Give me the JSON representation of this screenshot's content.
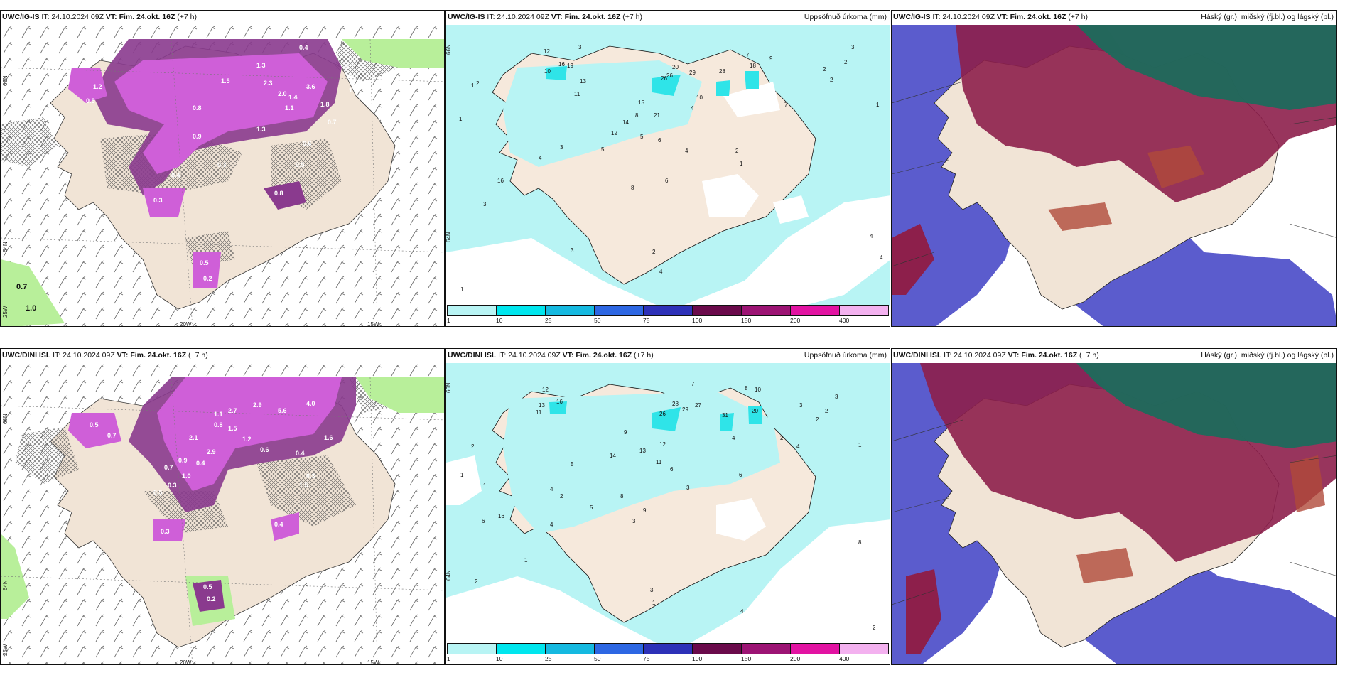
{
  "colors": {
    "land": "#f1e4d6",
    "precip_light": "#b8f4f4",
    "precip_cyan": "#2fe4e8",
    "purple_1": "#cf5fd8",
    "purple_2": "#8a3a8e",
    "green": "#b8ef9a",
    "cloud_low": "#5b5ccd",
    "cloud_mid": "#8d1f4b",
    "cloud_high": "#1e6a5c"
  },
  "panels": {
    "p1": {
      "model": "UWC/IG-IS",
      "it": "IT: 24.10.2024 09Z",
      "vt": "VT: Fim. 24.okt. 16Z",
      "lead": "(+7 h)",
      "axes": {
        "lon1": "20W",
        "lon2": "15W",
        "lat1": "66N",
        "lat2": "64N",
        "lat3": "25W"
      },
      "values": [
        "0.4",
        "0.7",
        "1.0",
        "1.3",
        "2.3",
        "1.5",
        "3.6",
        "1.8",
        "1.4",
        "1.1",
        "2.0",
        "0.7",
        "0.8",
        "1.2",
        "0.5",
        "0.9",
        "0.3",
        "0.4",
        "1.3",
        "0.6",
        "0.8",
        "0.5",
        "0.3",
        "0.5",
        "0.2",
        "0.7",
        "1.0"
      ]
    },
    "p2": {
      "model": "UWC/IG-IS",
      "it": "IT: 24.10.2024 09Z",
      "vt": "VT: Fim. 24.okt. 16Z",
      "lead": "(+7 h)",
      "title": "Uppsöfnuð úrkoma (mm)",
      "lat": [
        "66N",
        "64N"
      ],
      "numbers": [
        "3",
        "12",
        "16",
        "19",
        "10",
        "13",
        "11",
        "26",
        "20",
        "26",
        "29",
        "28",
        "18",
        "9",
        "7",
        "3",
        "15",
        "14",
        "21",
        "10",
        "4",
        "12",
        "6",
        "2",
        "7",
        "8",
        "5",
        "16",
        "1",
        "3",
        "4",
        "5",
        "8",
        "6",
        "4",
        "2",
        "1",
        "3",
        "2",
        "4",
        "1",
        "2",
        "4",
        "4",
        "2",
        "1",
        "3",
        "2",
        "1"
      ]
    },
    "p3": {
      "model": "UWC/IG-IS",
      "it": "IT: 24.10.2024 09Z",
      "vt": "VT: Fim. 24.okt. 16Z",
      "lead": "(+7 h)",
      "title": "Háský (gr.), miðský (fj.bl.) og lágský (bl.)"
    },
    "p4": {
      "model": "UWC/DINI ISL",
      "it": "IT: 24.10.2024 09Z",
      "vt": "VT: Fim. 24.okt. 16Z",
      "lead": "(+7 h)",
      "axes": {
        "lon1": "20W",
        "lon2": "15W",
        "lat1": "66N",
        "lat2": "64N",
        "lat3": "25W"
      },
      "values": [
        "2.9",
        "4.0",
        "5.6",
        "2.7",
        "1.6",
        "1.1",
        "0.8",
        "2.1",
        "1.5",
        "2.9",
        "1.2",
        "0.5",
        "0.4",
        "0.3",
        "1.5",
        "0.6",
        "0.4",
        "0.7",
        "0.9",
        "1.0",
        "0.5",
        "0.3",
        "0.4",
        "0.5",
        "0.2",
        "0.3",
        "0.7"
      ]
    },
    "p5": {
      "model": "UWC/DINI ISL",
      "it": "IT: 24.10.2024 09Z",
      "vt": "VT: Fim. 24.okt. 16Z",
      "lead": "(+7 h)",
      "title": "Uppsöfnuð úrkoma (mm)",
      "lat": [
        "66N",
        "64N"
      ],
      "numbers": [
        "7",
        "8",
        "10",
        "12",
        "16",
        "13",
        "11",
        "26",
        "28",
        "27",
        "29",
        "31",
        "20",
        "9",
        "3",
        "2",
        "14",
        "13",
        "12",
        "11",
        "5",
        "6",
        "8",
        "2",
        "4",
        "1",
        "3",
        "4",
        "6",
        "5",
        "16",
        "9",
        "3",
        "4",
        "2",
        "1",
        "3",
        "2",
        "4",
        "1",
        "6",
        "2",
        "8",
        "1",
        "3",
        "2",
        "4",
        "1",
        "2"
      ]
    },
    "p6": {
      "model": "UWC/DINI ISL",
      "it": "IT: 24.10.2024 09Z",
      "vt": "VT: Fim. 24.okt. 16Z",
      "lead": "(+7 h)",
      "title": "Háský (gr.), miðský (fj.bl.) og lágský (bl.)"
    }
  },
  "colorbar": {
    "labels": [
      "1",
      "10",
      "25",
      "50",
      "75",
      "100",
      "150",
      "200",
      "400"
    ],
    "colors": [
      "#b8f4f4",
      "#00e6ee",
      "#15b9e0",
      "#2d67e3",
      "#2d31b8",
      "#6a0a4b",
      "#9c1474",
      "#e213a2",
      "#f3b1ef"
    ]
  }
}
